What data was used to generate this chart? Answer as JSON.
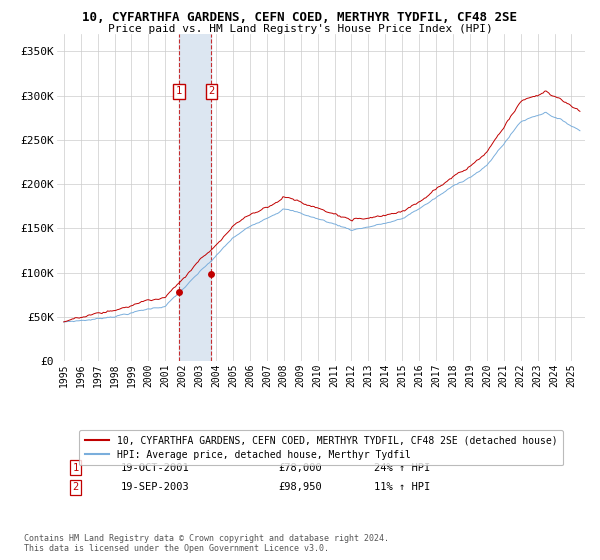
{
  "title": "10, CYFARTHFA GARDENS, CEFN COED, MERTHYR TYDFIL, CF48 2SE",
  "subtitle": "Price paid vs. HM Land Registry's House Price Index (HPI)",
  "ylim": [
    0,
    370000
  ],
  "yticks": [
    0,
    50000,
    100000,
    150000,
    200000,
    250000,
    300000,
    350000
  ],
  "ytick_labels": [
    "£0",
    "£50K",
    "£100K",
    "£150K",
    "£200K",
    "£250K",
    "£300K",
    "£350K"
  ],
  "hpi_color": "#7aaedc",
  "price_color": "#c00000",
  "sale1_date_label": "19-OCT-2001",
  "sale1_price": 78000,
  "sale1_price_label": "£78,000",
  "sale1_hpi_label": "24% ↑ HPI",
  "sale1_year": 2001.8,
  "sale2_date_label": "19-SEP-2003",
  "sale2_price": 98950,
  "sale2_price_label": "£98,950",
  "sale2_hpi_label": "11% ↑ HPI",
  "sale2_year": 2003.72,
  "legend_line1": "10, CYFARTHFA GARDENS, CEFN COED, MERTHYR TYDFIL, CF48 2SE (detached house)",
  "legend_line2": "HPI: Average price, detached house, Merthyr Tydfil",
  "footnote": "Contains HM Land Registry data © Crown copyright and database right 2024.\nThis data is licensed under the Open Government Licence v3.0.",
  "shaded_color": "#dce6f1",
  "vline_color": "#c00000",
  "years_start": 1995.0,
  "years_end": 2025.5,
  "xlim_left": 1994.6,
  "xlim_right": 2025.8
}
